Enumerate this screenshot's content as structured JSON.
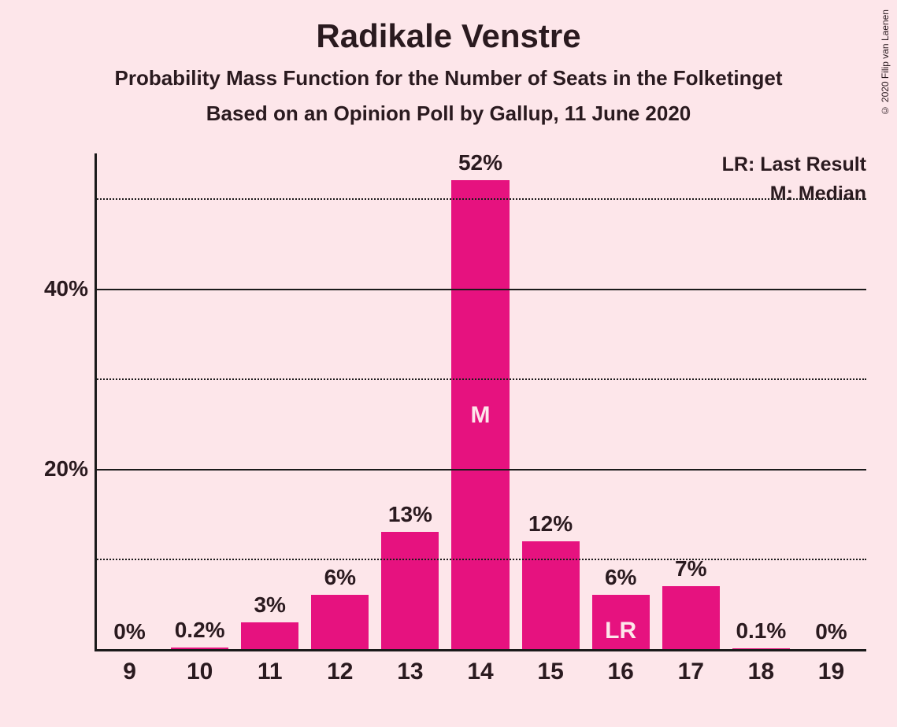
{
  "title": "Radikale Venstre",
  "subtitle1": "Probability Mass Function for the Number of Seats in the Folketinget",
  "subtitle2": "Based on an Opinion Poll by Gallup, 11 June 2020",
  "copyright": "© 2020 Filip van Laenen",
  "legend": {
    "lr": "LR: Last Result",
    "m": "M: Median"
  },
  "chart": {
    "type": "bar",
    "bar_color": "#e6127f",
    "background_color": "#fde6ea",
    "text_color": "#2a1a1f",
    "marker_text_color": "#fde6ea",
    "axis_color": "#1a1a1a",
    "grid_color": "#1a1a1a",
    "label_fontsize": 28,
    "tick_fontsize": 28,
    "bar_width_ratio": 0.82,
    "y_axis": {
      "min": 0,
      "max": 55,
      "ticks": [
        {
          "value": 20,
          "label": "20%"
        },
        {
          "value": 40,
          "label": "40%"
        }
      ],
      "gridlines": [
        {
          "value": 10,
          "style": "dotted"
        },
        {
          "value": 20,
          "style": "solid"
        },
        {
          "value": 30,
          "style": "dotted"
        },
        {
          "value": 40,
          "style": "solid"
        },
        {
          "value": 50,
          "style": "dotted"
        }
      ]
    },
    "categories": [
      "9",
      "10",
      "11",
      "12",
      "13",
      "14",
      "15",
      "16",
      "17",
      "18",
      "19"
    ],
    "values": [
      0,
      0.2,
      3,
      6,
      13,
      52,
      12,
      6,
      7,
      0.1,
      0
    ],
    "value_labels": [
      "0%",
      "0.2%",
      "3%",
      "6%",
      "13%",
      "52%",
      "12%",
      "6%",
      "7%",
      "0.1%",
      "0%"
    ],
    "markers": [
      {
        "index": 5,
        "text": "M",
        "placement": "inside-top"
      },
      {
        "index": 7,
        "text": "LR",
        "placement": "inside-bottom"
      }
    ]
  }
}
